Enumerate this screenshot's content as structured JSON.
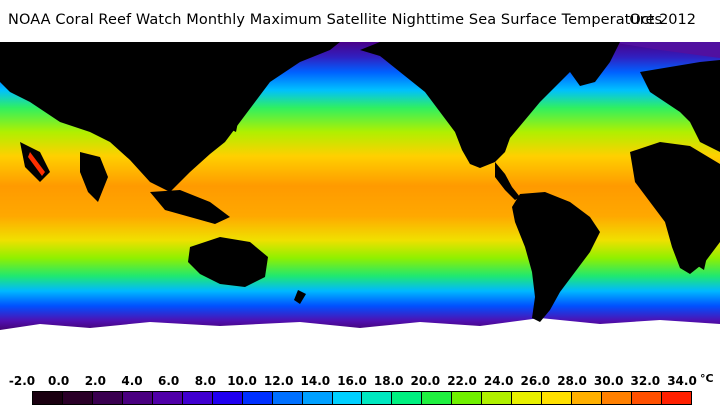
{
  "title": {
    "text": "NOAA Coral Reef Watch Monthly Maximum Satellite Nighttime Sea Surface Temperatures",
    "date": "Oct 2012"
  },
  "map": {
    "description_name": "global-sst-map",
    "land_color": "#000000",
    "ice_color": "#ffffff"
  },
  "scale": {
    "unit": "°C",
    "ticks": [
      "-2.0",
      "0.0",
      "2.0",
      "4.0",
      "6.0",
      "8.0",
      "10.0",
      "12.0",
      "14.0",
      "16.0",
      "18.0",
      "20.0",
      "22.0",
      "24.0",
      "26.0",
      "28.0",
      "30.0",
      "32.0",
      "34.0"
    ],
    "colors": [
      "#1a0010",
      "#2a0028",
      "#3a0050",
      "#4a0080",
      "#5000a8",
      "#4000d0",
      "#2000f0",
      "#0030ff",
      "#0070ff",
      "#00a0ff",
      "#00d0ff",
      "#00e8c0",
      "#00f080",
      "#20f040",
      "#70f000",
      "#b0f000",
      "#e8f000",
      "#ffe000",
      "#ffb000",
      "#ff8000",
      "#ff5000",
      "#ff2000"
    ]
  }
}
